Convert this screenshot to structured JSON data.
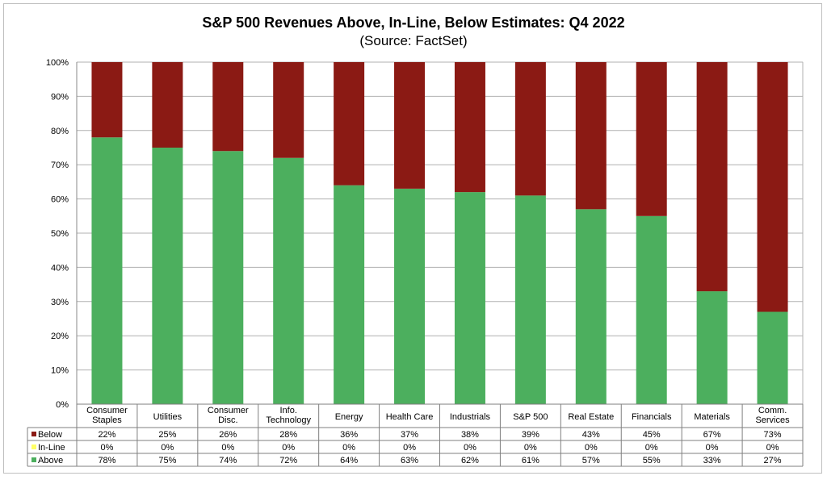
{
  "title": "S&P 500 Revenues Above, In-Line, Below Estimates: Q4 2022",
  "subtitle": "(Source: FactSet)",
  "colors": {
    "Below": "#8b1a14",
    "In-Line": "#ffff66",
    "Above": "#4caf5e"
  },
  "chart_data": {
    "type": "bar",
    "stacked": true,
    "title": "S&P 500 Revenues Above, In-Line, Below Estimates: Q4 2022",
    "subtitle": "(Source: FactSet)",
    "categories": [
      "Consumer\nStaples",
      "Utilities",
      "Consumer\nDisc.",
      "Info.\nTechnology",
      "Energy",
      "Health Care",
      "Industrials",
      "S&P 500",
      "Real Estate",
      "Financials",
      "Materials",
      "Comm.\nServices"
    ],
    "y_ticks": [
      "0%",
      "10%",
      "20%",
      "30%",
      "40%",
      "50%",
      "60%",
      "70%",
      "80%",
      "90%",
      "100%"
    ],
    "ylim": [
      0,
      100
    ],
    "grid": true,
    "legend": "data-table",
    "series": [
      {
        "name": "Below",
        "values": [
          22,
          25,
          26,
          28,
          36,
          37,
          38,
          39,
          43,
          45,
          67,
          73
        ],
        "labels": [
          "22%",
          "25%",
          "26%",
          "28%",
          "36%",
          "37%",
          "38%",
          "39%",
          "43%",
          "45%",
          "67%",
          "73%"
        ]
      },
      {
        "name": "In-Line",
        "values": [
          0,
          0,
          0,
          0,
          0,
          0,
          0,
          0,
          0,
          0,
          0,
          0
        ],
        "labels": [
          "0%",
          "0%",
          "0%",
          "0%",
          "0%",
          "0%",
          "0%",
          "0%",
          "0%",
          "0%",
          "0%",
          "0%"
        ]
      },
      {
        "name": "Above",
        "values": [
          78,
          75,
          74,
          72,
          64,
          63,
          62,
          61,
          57,
          55,
          33,
          27
        ],
        "labels": [
          "78%",
          "75%",
          "74%",
          "72%",
          "64%",
          "63%",
          "62%",
          "61%",
          "57%",
          "55%",
          "33%",
          "27%"
        ]
      }
    ]
  }
}
